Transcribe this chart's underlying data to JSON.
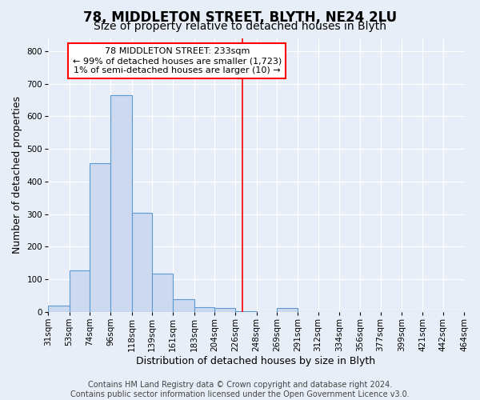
{
  "title": "78, MIDDLETON STREET, BLYTH, NE24 2LU",
  "subtitle": "Size of property relative to detached houses in Blyth",
  "xlabel": "Distribution of detached houses by size in Blyth",
  "ylabel": "Number of detached properties",
  "footer_line1": "Contains HM Land Registry data © Crown copyright and database right 2024.",
  "footer_line2": "Contains public sector information licensed under the Open Government Licence v3.0.",
  "bins": [
    31,
    53,
    74,
    96,
    118,
    139,
    161,
    183,
    204,
    226,
    248,
    269,
    291,
    312,
    334,
    356,
    377,
    399,
    421,
    442,
    464
  ],
  "bin_labels": [
    "31sqm",
    "53sqm",
    "74sqm",
    "96sqm",
    "118sqm",
    "139sqm",
    "161sqm",
    "183sqm",
    "204sqm",
    "226sqm",
    "248sqm",
    "269sqm",
    "291sqm",
    "312sqm",
    "334sqm",
    "356sqm",
    "377sqm",
    "399sqm",
    "421sqm",
    "442sqm",
    "464sqm"
  ],
  "bar_heights": [
    20,
    127,
    457,
    665,
    303,
    117,
    38,
    14,
    11,
    2,
    0,
    11,
    0,
    0,
    0,
    0,
    0,
    0,
    0,
    0
  ],
  "bar_color": "#ccd9ef",
  "bar_edge_color": "#5b9bd5",
  "vline_x": 233,
  "vline_color": "red",
  "annotation_line1": "78 MIDDLETON STREET: 233sqm",
  "annotation_line2": "← 99% of detached houses are smaller (1,723)",
  "annotation_line3": "1% of semi-detached houses are larger (10) →",
  "annotation_box_color": "white",
  "annotation_box_edge": "red",
  "ylim": [
    0,
    840
  ],
  "yticks": [
    0,
    100,
    200,
    300,
    400,
    500,
    600,
    700,
    800
  ],
  "background_color": "#e8eef7",
  "grid_color": "white",
  "title_fontsize": 12,
  "subtitle_fontsize": 10,
  "axis_label_fontsize": 9,
  "tick_fontsize": 7.5,
  "annotation_fontsize": 8,
  "footer_fontsize": 7
}
